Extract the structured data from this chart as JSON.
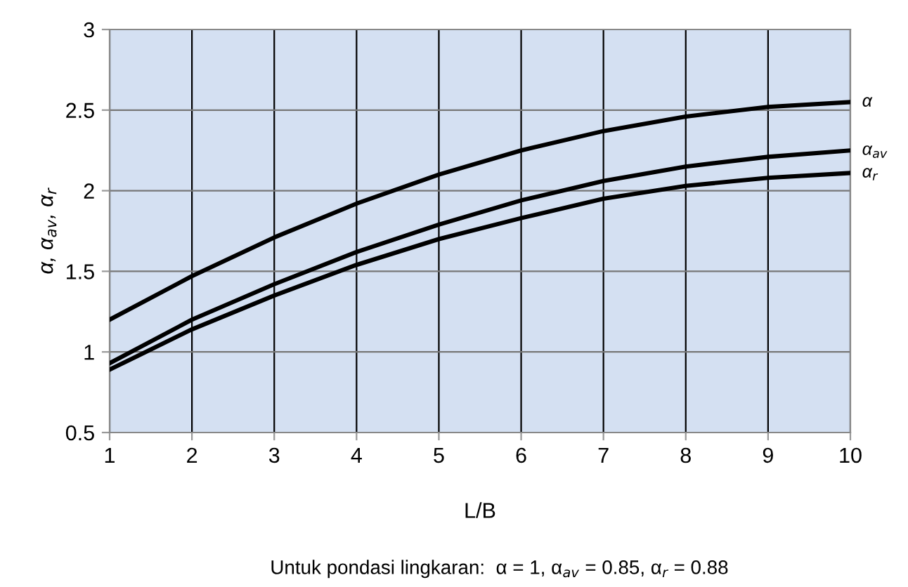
{
  "chart_data": {
    "type": "line",
    "xlabel": "L/B",
    "ylabel": "α, α$_{av}$, α$_{r}$",
    "x": [
      1,
      2,
      3,
      4,
      5,
      6,
      7,
      8,
      9,
      10
    ],
    "series": [
      {
        "name": "α",
        "color": "#000000",
        "values": [
          1.2,
          1.47,
          1.71,
          1.92,
          2.1,
          2.25,
          2.37,
          2.46,
          2.52,
          2.55
        ]
      },
      {
        "name": "α$_{av}$",
        "color": "#000000",
        "values": [
          0.93,
          1.2,
          1.42,
          1.62,
          1.79,
          1.94,
          2.06,
          2.15,
          2.21,
          2.25
        ]
      },
      {
        "name": "α$_{r}$",
        "color": "#000000",
        "values": [
          0.89,
          1.14,
          1.35,
          1.54,
          1.7,
          1.83,
          1.95,
          2.03,
          2.08,
          2.11
        ]
      }
    ],
    "xlim": [
      1,
      10
    ],
    "xticks": [
      1,
      2,
      3,
      4,
      5,
      6,
      7,
      8,
      9,
      10
    ],
    "ylim": [
      0.5,
      3
    ],
    "yticks": [
      0.5,
      1,
      1.5,
      2,
      2.5,
      3
    ],
    "grid": true,
    "marker": "none",
    "line_style": "solid",
    "legend": false,
    "annotations": [
      "Untuk pondasi lingkaran:  α = 1, α$_{av}$ = 0.85, α$_{r}$ = 0.88"
    ]
  }
}
